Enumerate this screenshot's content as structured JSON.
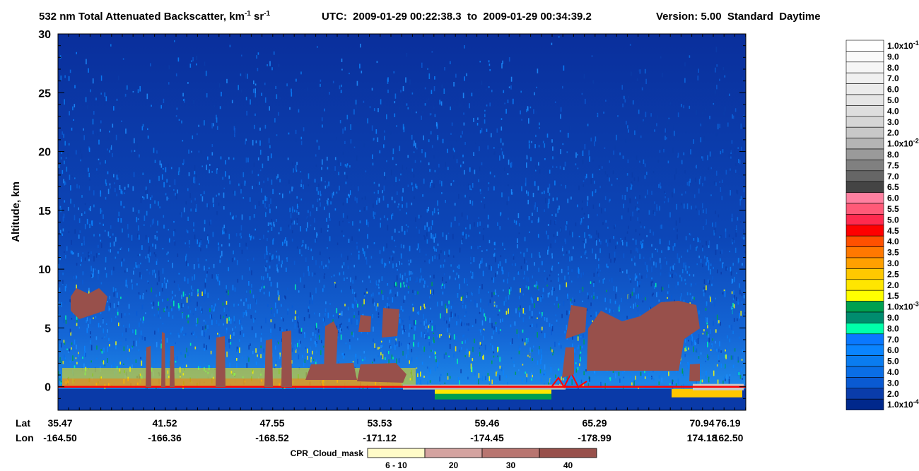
{
  "chart_data": {
    "type": "curtain",
    "title": {
      "text": "532 nm Total Attenuated Backscatter, km",
      "sup1": "-1",
      "text2": " sr",
      "sup2": "-1"
    },
    "time_range": "UTC:  2009-01-29 00:22:38.3  to  2009-01-29 00:34:39.2",
    "version": "Version: 5.00  Standard  Daytime",
    "ylabel": "Altitude, km",
    "ylim": [
      -2,
      30
    ],
    "yticks": [
      0,
      5,
      10,
      15,
      20,
      25,
      30
    ],
    "lat_label": "Lat",
    "lon_label": "Lon",
    "lat": [
      35.47,
      41.52,
      47.55,
      53.53,
      59.46,
      65.29,
      70.94,
      76.19
    ],
    "lon": [
      {
        "value": -164.5,
        "label": "-164.50"
      },
      -166.36,
      -168.52,
      -171.12,
      -174.45,
      -178.99,
      174.18,
      {
        "value": 162.5,
        "label": "162.50"
      }
    ],
    "colorbar": {
      "colors": [
        "#ffffff",
        "#fafafa",
        "#f5f5f5",
        "#f0f0f0",
        "#ebebeb",
        "#e5e5e5",
        "#dedede",
        "#d6d6d6",
        "#c8c8c8",
        "#b4b4b4",
        "#9a9a9a",
        "#808080",
        "#666666",
        "#444444",
        "#ff80a0",
        "#ff5a78",
        "#ff2a4e",
        "#ff0000",
        "#ff5000",
        "#ff7800",
        "#ffa000",
        "#ffc800",
        "#ffe600",
        "#ffff00",
        "#00a050",
        "#008c6e",
        "#00ffaa",
        "#0a78ff",
        "#0a84ff",
        "#0a7cf0",
        "#0a6ee6",
        "#0a5ad2",
        "#0a3caa",
        "#00288c"
      ],
      "labels": [
        {
          "text": "1.0x10",
          "sup": "-1"
        },
        "9.0",
        "8.0",
        "7.0",
        "6.0",
        "5.0",
        "4.0",
        "3.0",
        "2.0",
        {
          "text": "1.0x10",
          "sup": "-2"
        },
        "8.0",
        "7.5",
        "7.0",
        "6.5",
        "6.0",
        "5.5",
        "5.0",
        "4.5",
        "4.0",
        "3.5",
        "3.0",
        "2.5",
        "2.0",
        "1.5",
        {
          "text": "1.0x10",
          "sup": "-3"
        },
        "9.0",
        "8.0",
        "7.0",
        "6.0",
        "5.0",
        "4.0",
        "3.0",
        "2.0",
        {
          "text": "1.0x10",
          "sup": "-4"
        }
      ]
    },
    "cloud_mask": {
      "title": "CPR_Cloud_mask",
      "labels": [
        "6 - 10",
        20,
        30,
        40
      ],
      "colors": [
        "#fffbc8",
        "#d4a3a0",
        "#b87570",
        "#98504b"
      ]
    }
  }
}
